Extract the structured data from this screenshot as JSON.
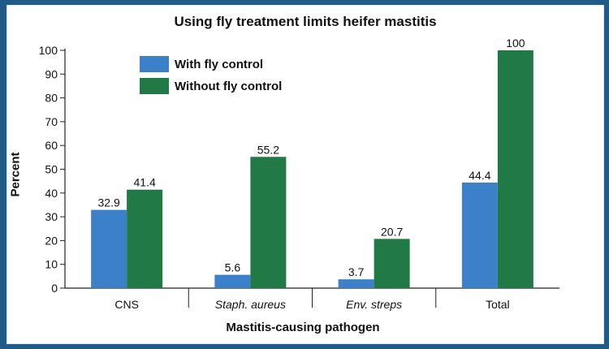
{
  "chart_data": {
    "type": "bar",
    "title": "Using fly treatment limits heifer mastitis",
    "xlabel": "Mastitis-causing pathogen",
    "ylabel": "Percent",
    "ylim": [
      0,
      100
    ],
    "yticks": [
      0,
      10,
      20,
      30,
      40,
      50,
      60,
      70,
      80,
      90,
      100
    ],
    "categories": [
      "CNS",
      "Staph. aureus",
      "Env. streps",
      "Total"
    ],
    "category_italic": [
      false,
      true,
      true,
      false
    ],
    "series": [
      {
        "name": "With fly control",
        "values": [
          32.9,
          5.6,
          3.7,
          44.4
        ],
        "value_labels": [
          "32.9",
          "5.6",
          "3.7",
          "44.4"
        ],
        "color": "#3b80c8"
      },
      {
        "name": "Without fly control",
        "values": [
          41.4,
          55.2,
          20.7,
          100
        ],
        "value_labels": [
          "41.4",
          "55.2",
          "20.7",
          "100"
        ],
        "color": "#217a46"
      }
    ],
    "legend_position": "top-left",
    "grid": false
  }
}
